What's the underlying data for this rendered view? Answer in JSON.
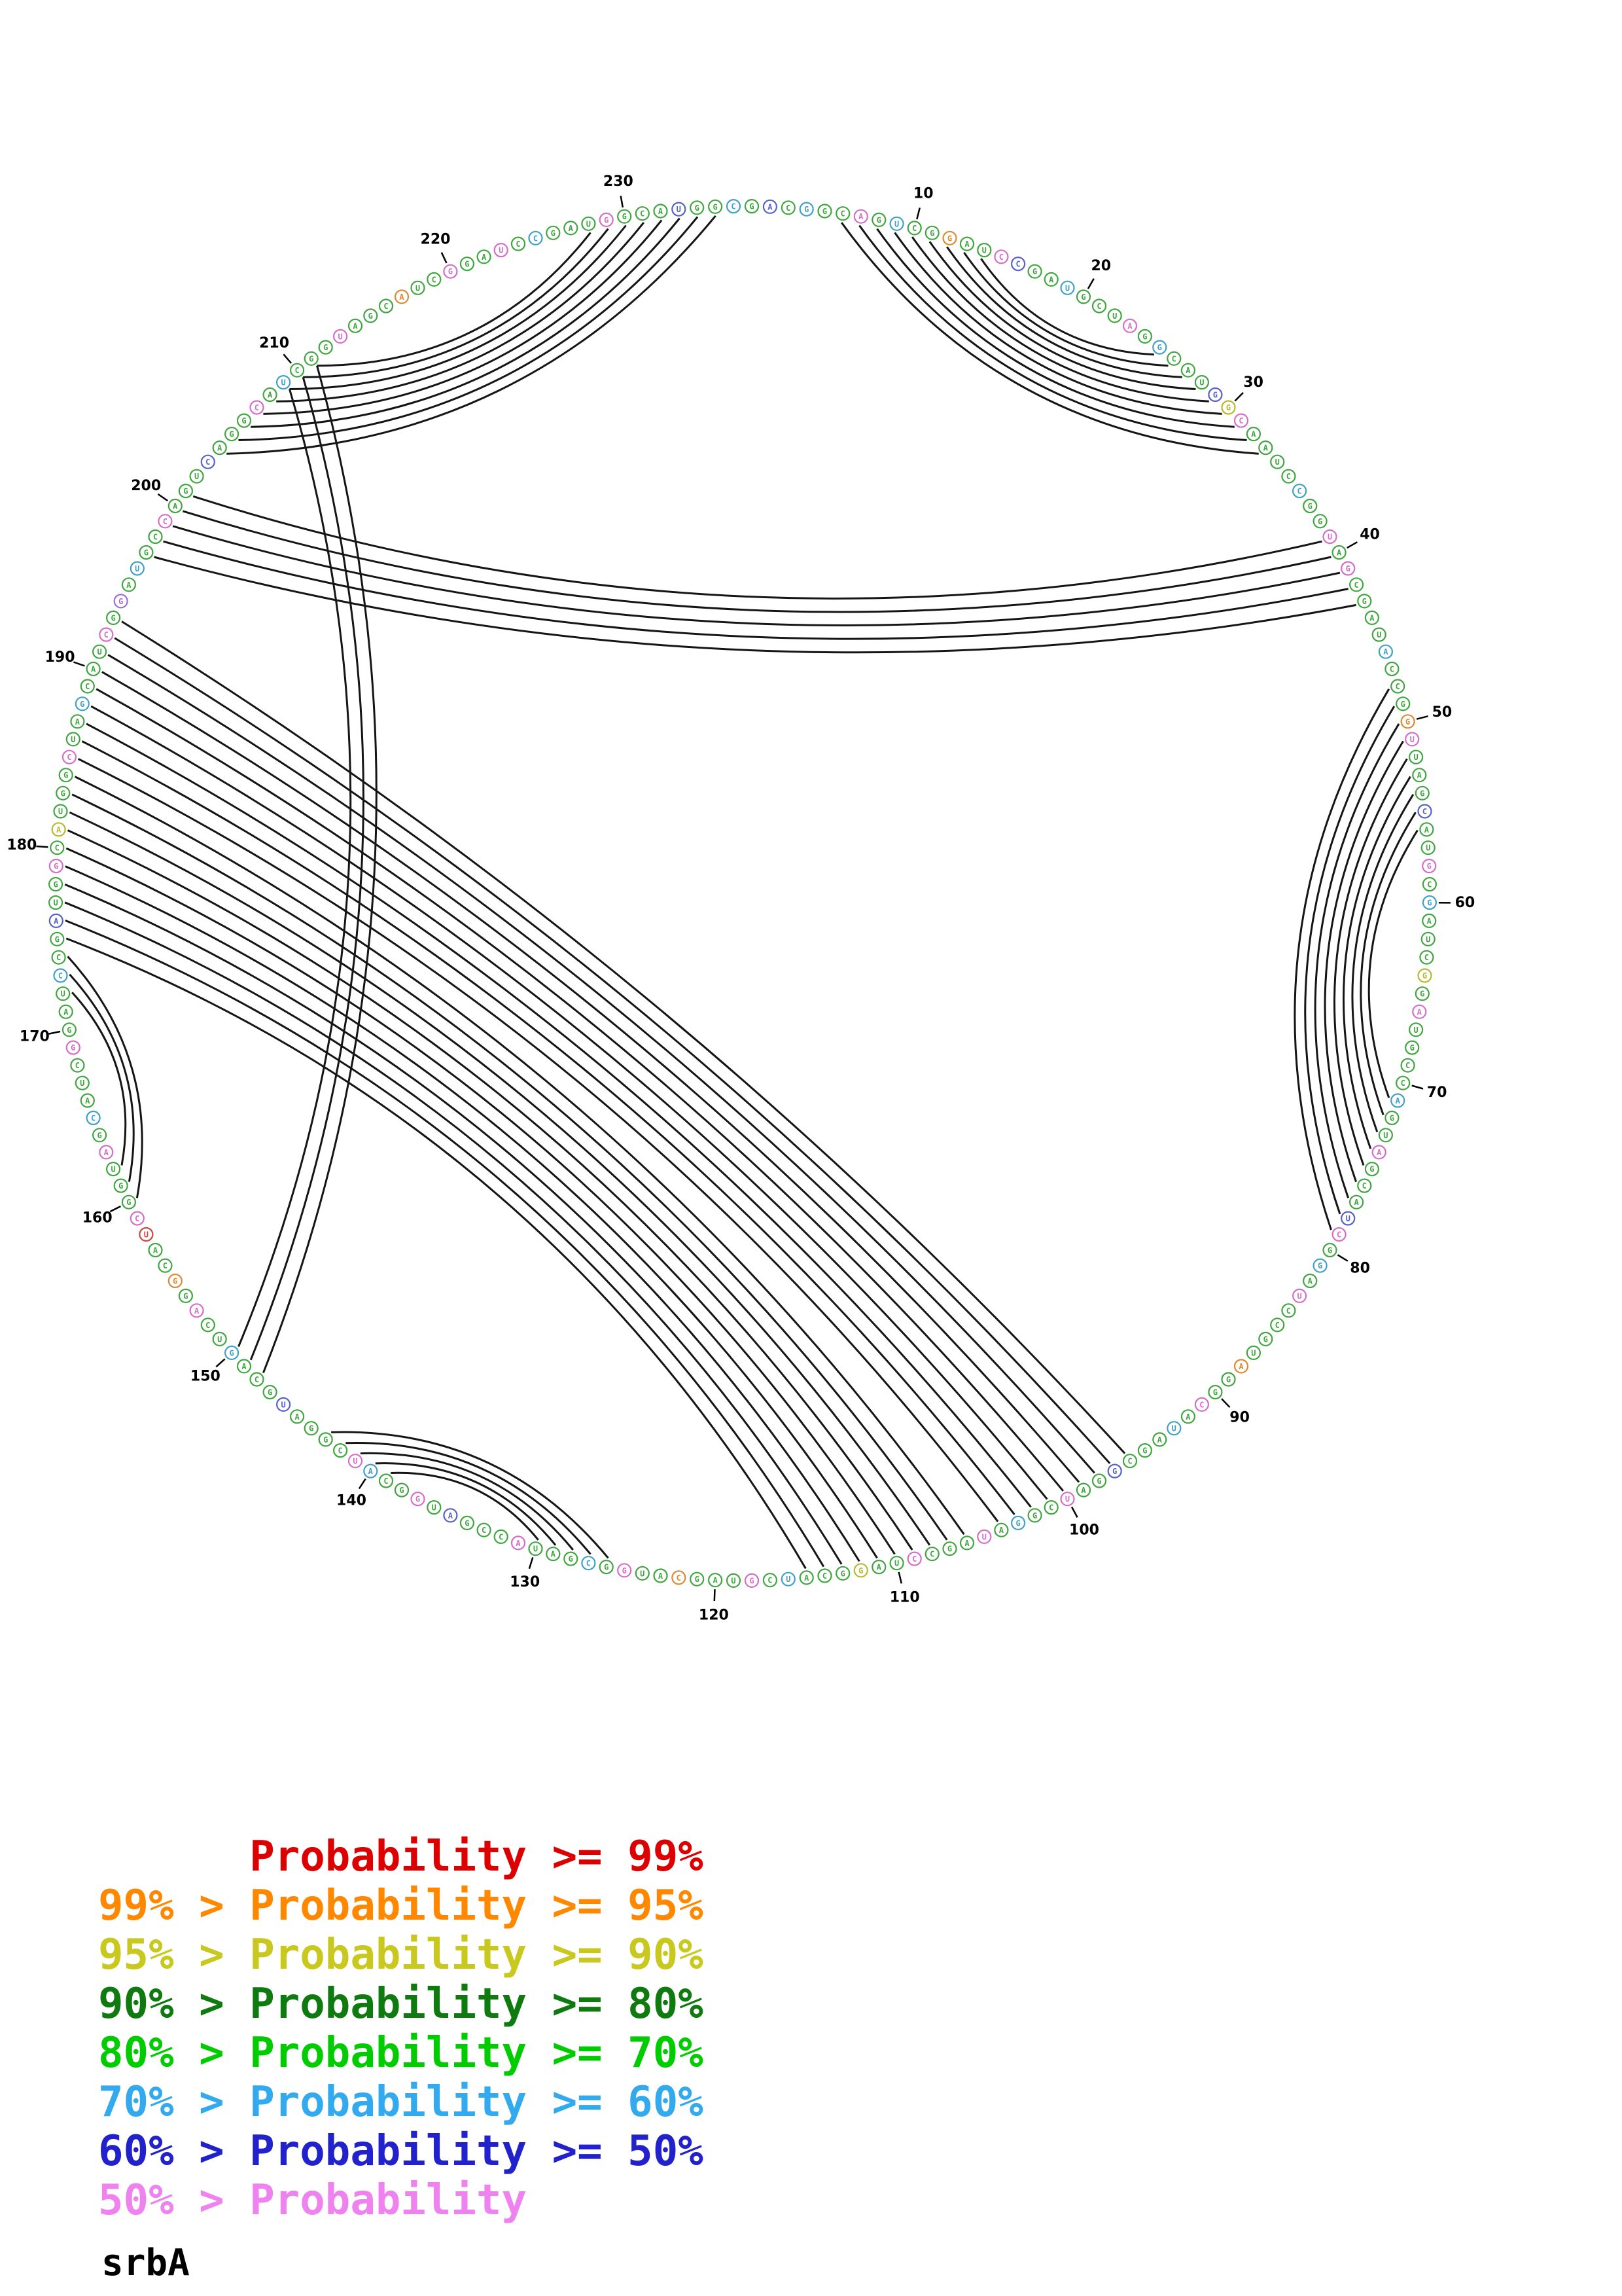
{
  "title": "srbA",
  "legend": {
    "items": [
      {
        "text": "      Probability >= 99%",
        "color": "#dd0000"
      },
      {
        "text": "99% > Probability >= 95%",
        "color": "#ff8800"
      },
      {
        "text": "95% > Probability >= 90%",
        "color": "#c8c81e"
      },
      {
        "text": "90% > Probability >= 80%",
        "color": "#0f7a0f"
      },
      {
        "text": "80% > Probability >= 70%",
        "color": "#00cc00"
      },
      {
        "text": "70% > Probability >= 60%",
        "color": "#33aaee"
      },
      {
        "text": "60% > Probability >= 50%",
        "color": "#2222cc"
      },
      {
        "text": "50% > Probability",
        "color": "#ee82ee"
      }
    ]
  },
  "chart_data": {
    "type": "circular-arc-diagram",
    "title": "srbA",
    "n_residues": 236,
    "ticks": [
      10,
      20,
      30,
      40,
      50,
      60,
      70,
      80,
      90,
      100,
      110,
      120,
      130,
      140,
      150,
      160,
      170,
      180,
      190,
      200,
      210,
      220,
      230
    ],
    "sequence": "GACGGCAGUCGGAUCCGAUGCUAGGCAUGGCAAUCCGGUAGCGAUACCGGUUAGCAUGCGAUCGGAUGCCAGUAGCAUCGGAUCCGUAGGCAUAGCGGAUCGGAUAGCCUAGGCAUCGUAGCAUGGCGAUACCGAUGGCAUCGGAUGCAGUCAGGCAUCGGUAGCAUCGGAUCCGAUGGCAUGGCUAGCAUCGGAUGCCAGUCAGGCAUCGGUAGCAUCGGAUCCGAUGGCAUGGC",
    "residue_colors": "02030010300400120030001030002510000300101000030004100020010300050100003001000210301000040010300020010030100010050003010004001030001000201003100002000300104007100010300010003002001050001003000106030010002000103000100040010010300010002003",
    "palette": {
      "0": "#3fa63f",
      "1": "#d46ec8",
      "2": "#5560c8",
      "3": "#3fa0c8",
      "4": "#e08830",
      "5": "#b8b830",
      "6": "#9b6fd4",
      "7": "#cc4444"
    },
    "arc_color": "#151515",
    "helices": [
      {
        "i": 204,
        "j": 235,
        "length": 8
      },
      {
        "i": 6,
        "j": 33,
        "length": 9
      },
      {
        "i": 197,
        "j": 43,
        "length": 5
      },
      {
        "i": 48,
        "j": 79,
        "length": 9
      },
      {
        "i": 96,
        "j": 193,
        "length": 9
      },
      {
        "i": 106,
        "j": 184,
        "length": 10
      },
      {
        "i": 148,
        "j": 211,
        "length": 3
      },
      {
        "i": 160,
        "j": 174,
        "length": 3
      },
      {
        "i": 126,
        "j": 143,
        "length": 5
      }
    ]
  }
}
